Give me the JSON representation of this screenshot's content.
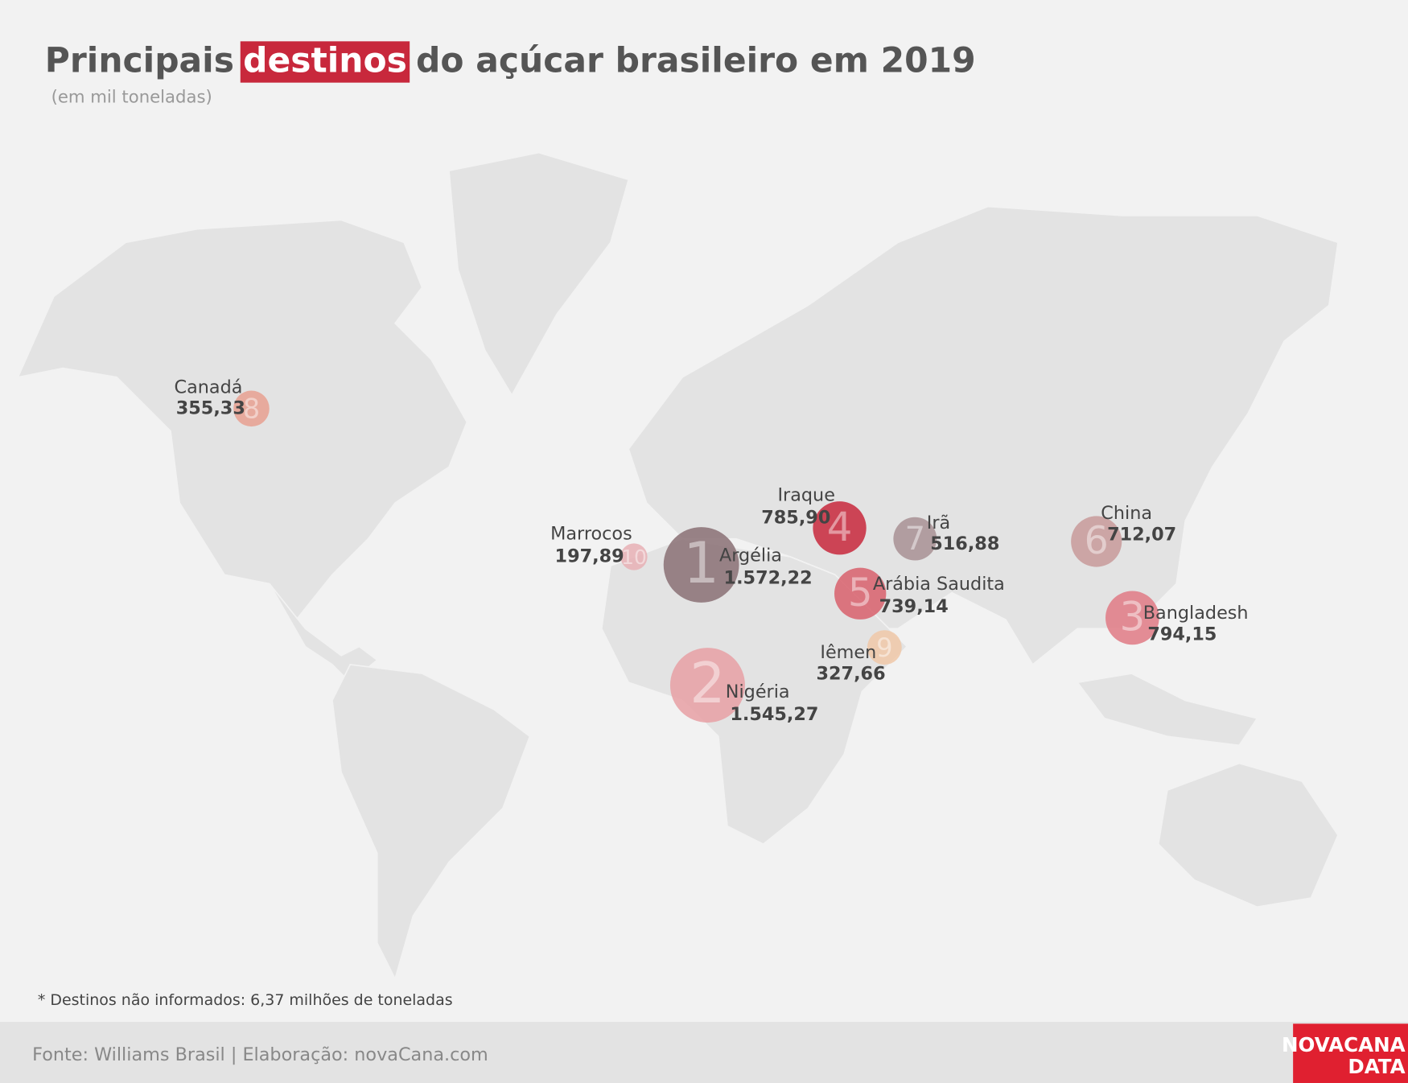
{
  "chart_data": {
    "type": "bubble-map",
    "title": {
      "before": "Principais",
      "highlight": "destinos",
      "after": "do açúcar brasileiro em 2019"
    },
    "subtitle": "(em mil toneladas)",
    "categories": [
      "Argélia",
      "Nigéria",
      "Bangladesh",
      "Iraque",
      "Arábia Saudita",
      "China",
      "Irã",
      "Canadá",
      "Iêmen",
      "Marrocos"
    ],
    "ranks": [
      1,
      2,
      3,
      4,
      5,
      6,
      7,
      8,
      9,
      10
    ],
    "values": [
      1572.22,
      1545.27,
      794.15,
      785.9,
      739.14,
      712.07,
      516.88,
      355.33,
      327.66,
      197.89
    ],
    "value_labels": [
      "1.572,22",
      "1.545,27",
      "794,15",
      "785,90",
      "739,14",
      "712,07",
      "516,88",
      "355,33",
      "327,66",
      "197,89"
    ],
    "colors": [
      "#8a7074",
      "#e8a0a5",
      "#e07a85",
      "#c8283c",
      "#d8606c",
      "#c89a9a",
      "#a89094",
      "#e8a090",
      "#f0c8a8",
      "#e8b0b5"
    ],
    "footnote": "* Destinos não informados: 6,37 milhões de toneladas",
    "source": "Fonte: Williams Brasil | Elaboração: novaCana.com",
    "logo": [
      "NOVACANA",
      "DATA"
    ]
  }
}
